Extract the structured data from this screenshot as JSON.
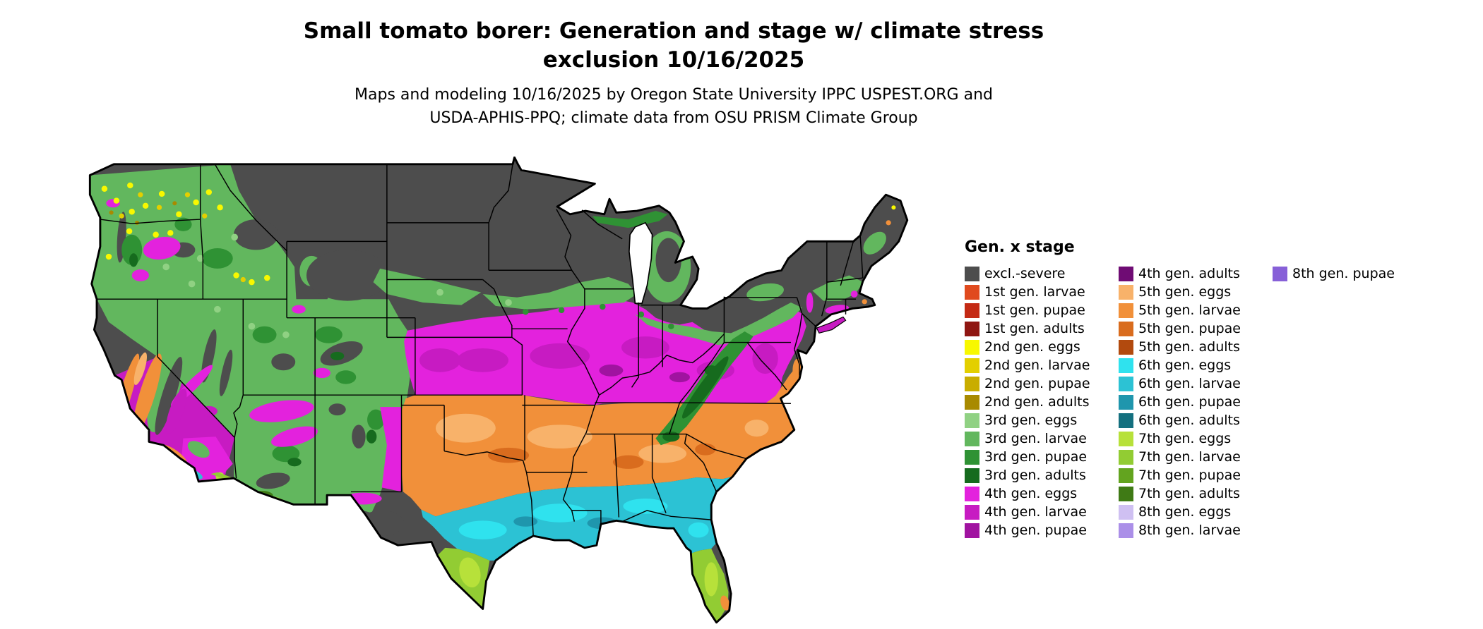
{
  "title": {
    "line1": "Small tomato borer: Generation and stage w/ climate stress",
    "line2": "exclusion 10/16/2025"
  },
  "subtitle": {
    "line1": "Maps and modeling 10/16/2025 by Oregon State University IPPC USPEST.ORG and",
    "line2": "USDA-APHIS-PPQ; climate data from OSU PRISM Climate Group"
  },
  "legend": {
    "title": "Gen. x stage",
    "columns": [
      {
        "items": [
          {
            "label": "excl.-severe",
            "color_key": "excl_severe"
          },
          {
            "label": "1st gen. larvae",
            "color_key": "g1_larvae"
          },
          {
            "label": "1st gen. pupae",
            "color_key": "g1_pupae"
          },
          {
            "label": "1st gen. adults",
            "color_key": "g1_adults"
          },
          {
            "label": "2nd gen. eggs",
            "color_key": "g2_eggs"
          },
          {
            "label": "2nd gen. larvae",
            "color_key": "g2_larvae"
          },
          {
            "label": "2nd gen. pupae",
            "color_key": "g2_pupae"
          },
          {
            "label": "2nd gen. adults",
            "color_key": "g2_adults"
          },
          {
            "label": "3rd gen. eggs",
            "color_key": "g3_eggs"
          },
          {
            "label": "3rd gen. larvae",
            "color_key": "g3_larvae"
          },
          {
            "label": "3rd gen. pupae",
            "color_key": "g3_pupae"
          },
          {
            "label": "3rd gen. adults",
            "color_key": "g3_adults"
          },
          {
            "label": "4th gen. eggs",
            "color_key": "g4_eggs"
          },
          {
            "label": "4th gen. larvae",
            "color_key": "g4_larvae"
          },
          {
            "label": "4th gen. pupae",
            "color_key": "g4_pupae"
          }
        ]
      },
      {
        "items": [
          {
            "label": "4th gen. adults",
            "color_key": "g4_adults"
          },
          {
            "label": "5th gen. eggs",
            "color_key": "g5_eggs"
          },
          {
            "label": "5th gen. larvae",
            "color_key": "g5_larvae"
          },
          {
            "label": "5th gen. pupae",
            "color_key": "g5_pupae"
          },
          {
            "label": "5th gen. adults",
            "color_key": "g5_adults"
          },
          {
            "label": "6th gen. eggs",
            "color_key": "g6_eggs"
          },
          {
            "label": "6th gen. larvae",
            "color_key": "g6_larvae"
          },
          {
            "label": "6th gen. pupae",
            "color_key": "g6_pupae"
          },
          {
            "label": "6th gen. adults",
            "color_key": "g6_adults"
          },
          {
            "label": "7th gen. eggs",
            "color_key": "g7_eggs"
          },
          {
            "label": "7th gen. larvae",
            "color_key": "g7_larvae"
          },
          {
            "label": "7th gen. pupae",
            "color_key": "g7_pupae"
          },
          {
            "label": "7th gen. adults",
            "color_key": "g7_adults"
          },
          {
            "label": "8th gen. eggs",
            "color_key": "g8_eggs"
          },
          {
            "label": "8th gen. larvae",
            "color_key": "g8_larvae"
          }
        ]
      },
      {
        "items": [
          {
            "label": "8th gen. pupae",
            "color_key": "g8_pupae"
          }
        ]
      }
    ]
  },
  "palette": {
    "excl_severe": "#4d4d4d",
    "g1_larvae": "#e04a1e",
    "g1_pupae": "#c42a14",
    "g1_adults": "#8f1612",
    "g2_eggs": "#f8f800",
    "g2_larvae": "#e3cf00",
    "g2_pupae": "#c9ad00",
    "g2_adults": "#a88a00",
    "g3_eggs": "#90d183",
    "g3_larvae": "#62b75e",
    "g3_pupae": "#2f9234",
    "g3_adults": "#166b1e",
    "g4_eggs": "#e322dd",
    "g4_larvae": "#c71bc2",
    "g4_pupae": "#a013a0",
    "g4_adults": "#6f0c74",
    "g5_eggs": "#f8b26a",
    "g5_larvae": "#f1903a",
    "g5_pupae": "#d96c1e",
    "g5_adults": "#b24a0e",
    "g6_eggs": "#2fe2ee",
    "g6_larvae": "#2cc2d4",
    "g6_pupae": "#1f96ad",
    "g6_adults": "#14707f",
    "g7_eggs": "#b7e13a",
    "g7_larvae": "#92cc33",
    "g7_pupae": "#63a41f",
    "g7_adults": "#3f7a15",
    "g8_eggs": "#cfc0f2",
    "g8_larvae": "#ab8fe8",
    "g8_pupae": "#8760d8",
    "map_background": "#ffffff",
    "border": "#000000"
  }
}
